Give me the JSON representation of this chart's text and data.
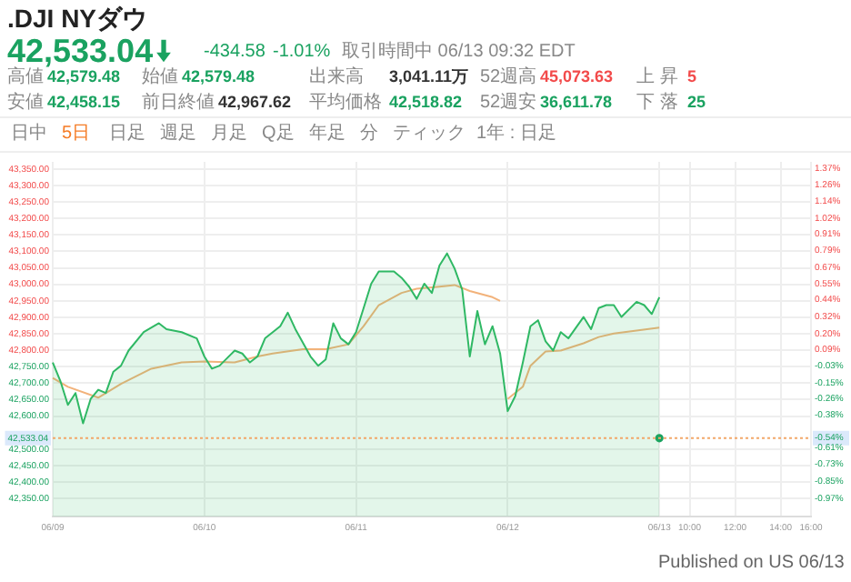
{
  "chart_data": {
    "type": "area",
    "title": ".DJI NYダウ",
    "subtitle": "42,533.04",
    "annotations": [
      "-434.58",
      "-1.01%",
      "取引時間中 06/13 09:32 EDT",
      "高値",
      "42,579.48",
      "始値",
      "42,579.48",
      "出来高",
      "3,041.11万",
      "52週高",
      "45,073.63",
      "上 昇",
      "5",
      "安値",
      "42,458.15",
      "前日終値",
      "42,967.62",
      "平均価格",
      "42,518.82",
      "52週安",
      "36,611.78",
      "下 落",
      "25",
      "日中",
      "5日",
      "日足",
      "週足",
      "月足",
      "Q足",
      "年足",
      "分",
      "ティック",
      "1年 : 日足",
      "Published on US 06/13"
    ],
    "categories": [
      "06/09",
      null,
      null,
      null,
      null,
      null,
      null,
      null,
      null,
      null,
      null,
      null,
      null,
      null,
      null,
      null,
      null,
      null,
      null,
      null,
      "06/10",
      null,
      null,
      null,
      null,
      null,
      null,
      null,
      null,
      null,
      null,
      null,
      null,
      null,
      null,
      null,
      null,
      null,
      null,
      null,
      "06/11",
      null,
      null,
      null,
      null,
      null,
      null,
      null,
      null,
      null,
      null,
      null,
      null,
      null,
      null,
      null,
      null,
      null,
      null,
      null,
      "06/12",
      null,
      null,
      null,
      null,
      null,
      null,
      null,
      null,
      null,
      null,
      null,
      null,
      null,
      null,
      null,
      null,
      null,
      null,
      null,
      "06/13",
      null,
      null,
      null,
      "10:00",
      null,
      null,
      null,
      null,
      null,
      "12:00",
      null,
      null,
      null,
      null,
      null,
      "14:00",
      null,
      null,
      null,
      "16:00"
    ],
    "series": [
      {
        "color": "#2fb864",
        "marker": "none",
        "values": [
          42763,
          42707,
          42634,
          42670,
          42578,
          42652,
          42680,
          42670,
          42735,
          42753,
          42799,
          null,
          42855,
          null,
          42882,
          42864,
          null,
          42855,
          null,
          42836,
          42781,
          42744,
          42753,
          null,
          42799,
          42790,
          42763,
          42781,
          42836,
          null,
          42873,
          42914,
          42864,
          null,
          42781,
          42753,
          42772,
          42882,
          42836,
          42818,
          42855,
          42928,
          43002,
          43039,
          null,
          43039,
          43020,
          42993,
          42956,
          43002,
          42974,
          43057,
          43094,
          43048,
          42984,
          42781,
          42919,
          42818,
          42873,
          42790,
          42615,
          42661,
          42763,
          42873,
          42891,
          42827,
          42799,
          42855,
          42836,
          null,
          42901,
          42864,
          42928,
          42937,
          42937,
          42901,
          null,
          42947,
          42937,
          42910,
          42961,
          null,
          null,
          null,
          null,
          null,
          null,
          null,
          null,
          null,
          null,
          null,
          null,
          null,
          null,
          null,
          null,
          null,
          null,
          null,
          null
        ]
      },
      {
        "type": "line",
        "color": "#f2b27a",
        "marker": "none",
        "values": [
          42716,
          null,
          42689,
          null,
          null,
          null,
          42656,
          null,
          null,
          42698,
          null,
          null,
          null,
          42744,
          null,
          null,
          null,
          42763,
          null,
          null,
          42766,
          null,
          null,
          null,
          42763,
          null,
          null,
          42781,
          null,
          42790,
          null,
          null,
          null,
          42803,
          null,
          null,
          42803,
          null,
          null,
          42818,
          null,
          42873,
          null,
          42937,
          null,
          null,
          42974,
          null,
          42987,
          null,
          null,
          42993,
          null,
          42998,
          null,
          42980,
          null,
          null,
          42961,
          42950,
          null,
          null,
          null,
          null,
          null,
          null,
          null,
          null,
          null,
          null,
          null,
          null,
          null,
          null,
          null,
          null,
          null,
          null,
          null,
          null,
          null,
          null,
          null,
          null,
          null,
          null,
          null,
          null,
          null,
          null,
          null,
          null,
          null,
          null,
          null,
          null,
          null,
          null,
          null,
          null,
          null
        ]
      },
      {
        "type": "line",
        "color": "#f2b27a",
        "marker": "none",
        "values": [
          null,
          null,
          null,
          null,
          null,
          null,
          null,
          null,
          null,
          null,
          null,
          null,
          null,
          null,
          null,
          null,
          null,
          null,
          null,
          null,
          null,
          null,
          null,
          null,
          null,
          null,
          null,
          null,
          null,
          null,
          null,
          null,
          null,
          null,
          null,
          null,
          null,
          null,
          null,
          null,
          null,
          null,
          null,
          null,
          null,
          null,
          null,
          null,
          null,
          null,
          null,
          null,
          null,
          null,
          null,
          null,
          null,
          null,
          null,
          null,
          42652,
          null,
          42689,
          42753,
          null,
          42796,
          null,
          42799,
          null,
          null,
          42821,
          null,
          42840,
          null,
          42851,
          null,
          null,
          42860,
          null,
          null,
          42869,
          null,
          null,
          null,
          null,
          null,
          null,
          null,
          null,
          null,
          null,
          null,
          null,
          null,
          null,
          null,
          null,
          null,
          null,
          null,
          null
        ]
      },
      {
        "type": "scatter",
        "color": "#1aa260",
        "marker": "circle",
        "values": [
          null,
          null,
          null,
          null,
          null,
          null,
          null,
          null,
          null,
          null,
          null,
          null,
          null,
          null,
          null,
          null,
          null,
          null,
          null,
          null,
          null,
          null,
          null,
          null,
          null,
          null,
          null,
          null,
          null,
          null,
          null,
          null,
          null,
          null,
          null,
          null,
          null,
          null,
          null,
          null,
          null,
          null,
          null,
          null,
          null,
          null,
          null,
          null,
          null,
          null,
          null,
          null,
          null,
          null,
          null,
          null,
          null,
          null,
          null,
          null,
          null,
          null,
          null,
          null,
          null,
          null,
          null,
          null,
          null,
          null,
          null,
          null,
          null,
          null,
          null,
          null,
          null,
          null,
          null,
          null,
          42533.04,
          null,
          null,
          null,
          null,
          null,
          null,
          null,
          null,
          null,
          null,
          null,
          null,
          null,
          null,
          null,
          null,
          null,
          null,
          null,
          null
        ]
      }
    ],
    "ylim": [
      42295,
      43372
    ],
    "yticks": [
      {
        "value": 42350,
        "label": "42,350.00"
      },
      {
        "value": 42400,
        "label": "42,400.00"
      },
      {
        "value": 42450,
        "label": "42,450.00"
      },
      {
        "value": 42500,
        "label": "42,500.00"
      },
      {
        "value": 42600,
        "label": "42,600.00"
      },
      {
        "value": 42650,
        "label": "42,650.00"
      },
      {
        "value": 42700,
        "label": "42,700.00"
      },
      {
        "value": 42750,
        "label": "42,750.00"
      },
      {
        "value": 42800,
        "label": "42,800.00"
      },
      {
        "value": 42850,
        "label": "42,850.00"
      },
      {
        "value": 42900,
        "label": "42,900.00"
      },
      {
        "value": 42950,
        "label": "42,950.00"
      },
      {
        "value": 43000,
        "label": "43,000.00"
      },
      {
        "value": 43050,
        "label": "43,050.00"
      },
      {
        "value": 43100,
        "label": "43,100.00"
      },
      {
        "value": 43150,
        "label": "43,150.00"
      },
      {
        "value": 43200,
        "label": "43,200.00"
      },
      {
        "value": 43250,
        "label": "43,250.00"
      },
      {
        "value": 43300,
        "label": "43,300.00"
      },
      {
        "value": 43350,
        "label": "43,350.00"
      }
    ],
    "y2lim": [
      -1.1,
      1.42
    ],
    "y2ticks": [
      {
        "value": -0.97,
        "label": "-0.97%"
      },
      {
        "value": -0.85,
        "label": "-0.85%"
      },
      {
        "value": -0.73,
        "label": "-0.73%"
      },
      {
        "value": -0.61,
        "label": "-0.61%"
      },
      {
        "value": -0.54,
        "label": "-0.54%"
      },
      {
        "value": -0.38,
        "label": "-0.38%"
      },
      {
        "value": -0.26,
        "label": "-0.26%"
      },
      {
        "value": -0.15,
        "label": "-0.15%"
      },
      {
        "value": -0.03,
        "label": "-0.03%"
      },
      {
        "value": 0.09,
        "label": "0.09%"
      },
      {
        "value": 0.2,
        "label": "0.20%"
      },
      {
        "value": 0.32,
        "label": "0.32%"
      },
      {
        "value": 0.44,
        "label": "0.44%"
      },
      {
        "value": 0.55,
        "label": "0.55%"
      },
      {
        "value": 0.67,
        "label": "0.67%"
      },
      {
        "value": 0.79,
        "label": "0.79%"
      },
      {
        "value": 0.91,
        "label": "0.91%"
      },
      {
        "value": 1.02,
        "label": "1.02%"
      },
      {
        "value": 1.14,
        "label": "1.14%"
      },
      {
        "value": 1.26,
        "label": "1.26%"
      },
      {
        "value": 1.37,
        "label": "1.37%"
      }
    ],
    "ref_lines": [
      {
        "axis": "y",
        "value": 42533.04,
        "label": "42,533.04",
        "color": "#f2a86a",
        "line_style": "dotted"
      }
    ],
    "grid": true,
    "legend": false
  }
}
